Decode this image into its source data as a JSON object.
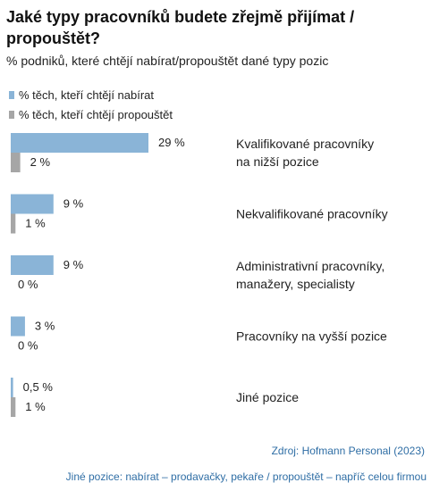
{
  "header": {
    "title": "Jaké typy pracovníků budete zřejmě přijímat / propouštět?",
    "subtitle": "% podniků, které chtějí nabírat/propouštět dané typy pozic"
  },
  "colors": {
    "hire": "#8ab4d7",
    "fire": "#a6a6a6"
  },
  "chart_data": {
    "type": "bar",
    "orientation": "horizontal",
    "xlim": [
      0,
      29
    ],
    "grid": false,
    "legend_position": "top-left",
    "categories": [
      [
        "Kvalifikované pracovníky",
        "na nižší pozice"
      ],
      [
        "Nekvalifikované pracovníky"
      ],
      [
        "Administrativní pracovníky,",
        "manažery, specialisty"
      ],
      [
        "Pracovníky na vyšší pozice"
      ],
      [
        "Jiné pozice"
      ]
    ],
    "series": [
      {
        "name": "% těch, kteří chtějí nabírat",
        "values": [
          29,
          9,
          9,
          3,
          0.5
        ],
        "labels": [
          "29 %",
          "9 %",
          "9 %",
          "3 %",
          "0,5 %"
        ]
      },
      {
        "name": "% těch, kteří chtějí propouštět",
        "values": [
          2,
          1,
          0,
          0,
          1
        ],
        "labels": [
          "2 %",
          "1 %",
          "0 %",
          "0 %",
          "1 %"
        ]
      }
    ]
  },
  "footer": {
    "source": "Zdroj: Hofmann Personal (2023)",
    "note": "Jiné pozice: nabírat – prodavačky, pekaře / propouštět – napříč celou firmou"
  }
}
